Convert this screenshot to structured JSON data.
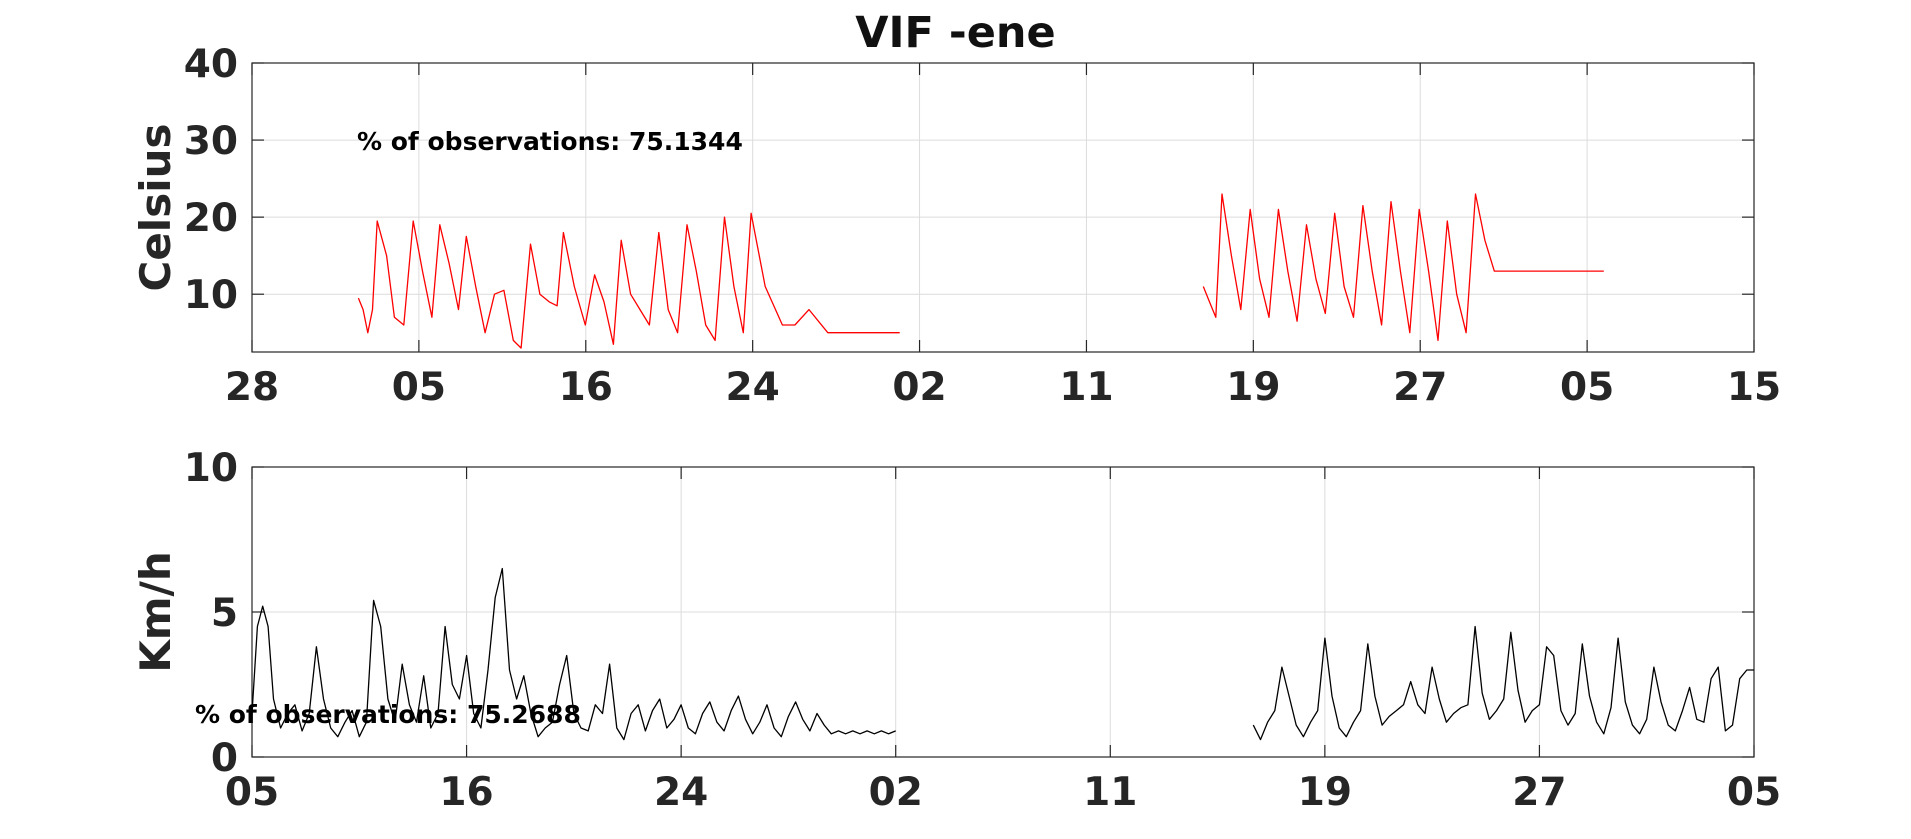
{
  "title": "VIF -ene",
  "chart_data": [
    {
      "type": "line",
      "ylabel": "Celsius",
      "ylim": [
        2.5,
        40
      ],
      "yticks": [
        10,
        20,
        30,
        40
      ],
      "xlim": [
        0,
        48
      ],
      "xticks": [
        0,
        5.333,
        10.667,
        16,
        21.333,
        26.667,
        32,
        37.333,
        42.667,
        48
      ],
      "xtick_labels": [
        "28",
        "05",
        "16",
        "24",
        "02",
        "11",
        "19",
        "27",
        "05",
        "15"
      ],
      "grid": true,
      "color": "#ff0000",
      "annotation": "% of observations: 75.1344",
      "series": [
        {
          "x": [
            3.4,
            3.55,
            3.7,
            3.85,
            4.0,
            4.3,
            4.55,
            4.85,
            5.15,
            5.45,
            5.75,
            6.0,
            6.3,
            6.6,
            6.85,
            7.15,
            7.45,
            7.75,
            8.05,
            8.35,
            8.6,
            8.9,
            9.2,
            9.5,
            9.75,
            9.95,
            10.3,
            10.65,
            10.95,
            11.25,
            11.55,
            11.8,
            12.1,
            12.4,
            12.7,
            13.0,
            13.3,
            13.6,
            13.9,
            14.2,
            14.5,
            14.8,
            15.1,
            15.4,
            15.7,
            15.95,
            16.4,
            16.95,
            17.35,
            17.8,
            18.4,
            18.85,
            19.35,
            20.0,
            20.4,
            20.7
          ],
          "y": [
            9.5,
            8,
            5,
            8,
            19.5,
            15,
            7,
            6,
            19.5,
            13,
            7,
            19,
            14,
            8,
            17.5,
            11,
            5,
            10,
            10.5,
            4,
            3,
            16.5,
            10,
            9,
            8.5,
            18,
            11,
            6,
            12.5,
            9,
            3.5,
            17,
            10,
            8,
            6,
            18,
            8,
            5,
            19,
            13,
            6,
            4,
            20,
            11,
            5,
            20.5,
            11,
            6,
            6,
            8,
            5,
            5,
            5,
            5,
            5,
            5
          ]
        },
        {
          "x": [
            30.4,
            30.6,
            30.8,
            31.0,
            31.3,
            31.6,
            31.9,
            32.2,
            32.5,
            32.8,
            33.1,
            33.4,
            33.7,
            34.0,
            34.3,
            34.6,
            34.9,
            35.2,
            35.5,
            35.8,
            36.1,
            36.4,
            36.7,
            37.0,
            37.3,
            37.6,
            37.9,
            38.2,
            38.5,
            38.8,
            39.1,
            39.4,
            39.7,
            40.0,
            40.3,
            40.6,
            40.9,
            41.2,
            41.5,
            41.8,
            42.1,
            42.4,
            42.7,
            43.0,
            43.2
          ],
          "y": [
            11,
            9,
            7,
            23,
            15,
            8,
            21,
            12,
            7,
            21,
            13,
            6.5,
            19,
            12,
            7.5,
            20.5,
            11,
            7,
            21.5,
            13,
            6,
            22,
            13,
            5,
            21,
            13,
            4,
            19.5,
            10,
            5,
            23,
            17,
            13,
            13,
            13,
            13,
            13,
            13,
            13,
            13,
            13,
            13,
            13,
            13,
            13
          ]
        }
      ]
    },
    {
      "type": "line",
      "ylabel": "Km/h",
      "ylim": [
        0,
        10
      ],
      "yticks": [
        0,
        5,
        10
      ],
      "xlim": [
        0,
        42
      ],
      "xticks": [
        0,
        6,
        12,
        18,
        24,
        30,
        36,
        42
      ],
      "xtick_labels": [
        "05",
        "16",
        "24",
        "02",
        "11",
        "19",
        "27",
        "05"
      ],
      "grid": true,
      "color": "#000000",
      "annotation": "% of observations: 75.2688",
      "series": [
        {
          "x": [
            0.0,
            0.15,
            0.3,
            0.45,
            0.6,
            0.8,
            1.0,
            1.2,
            1.4,
            1.6,
            1.8,
            2.0,
            2.2,
            2.4,
            2.6,
            2.8,
            3.0,
            3.2,
            3.4,
            3.6,
            3.8,
            4.0,
            4.2,
            4.4,
            4.6,
            4.8,
            5.0,
            5.2,
            5.4,
            5.6,
            5.8,
            6.0,
            6.2,
            6.4,
            6.6,
            6.8,
            7.0,
            7.2,
            7.4,
            7.6,
            7.8,
            8.0,
            8.2,
            8.4,
            8.6,
            8.8,
            9.0,
            9.2,
            9.4,
            9.6,
            9.8,
            10.0,
            10.2,
            10.4,
            10.6,
            10.8,
            11.0,
            11.2,
            11.4,
            11.6,
            11.8,
            12.0,
            12.2,
            12.4,
            12.6,
            12.8,
            13.0,
            13.2,
            13.4,
            13.6,
            13.8,
            14.0,
            14.2,
            14.4,
            14.6,
            14.8,
            15.0,
            15.2,
            15.4,
            15.6,
            15.8,
            16.0,
            16.2,
            16.4,
            16.6,
            16.8,
            17.0,
            17.2,
            17.4,
            17.6,
            17.8,
            18.0
          ],
          "y": [
            1.5,
            4.5,
            5.2,
            4.5,
            2,
            1,
            1.5,
            1.8,
            0.9,
            1.5,
            3.8,
            2,
            1,
            0.7,
            1.2,
            1.6,
            0.7,
            1.2,
            5.4,
            4.5,
            2,
            1.2,
            3.2,
            1.8,
            1.2,
            2.8,
            1,
            1.5,
            4.5,
            2.5,
            2,
            3.5,
            1.5,
            1,
            3,
            5.5,
            6.5,
            3,
            2,
            2.8,
            1.5,
            0.7,
            1,
            1.2,
            2.5,
            3.5,
            1.5,
            1,
            0.9,
            1.8,
            1.5,
            3.2,
            1,
            0.6,
            1.5,
            1.8,
            0.9,
            1.6,
            2,
            1,
            1.3,
            1.8,
            1,
            0.8,
            1.5,
            1.9,
            1.2,
            0.9,
            1.6,
            2.1,
            1.3,
            0.8,
            1.2,
            1.8,
            1.0,
            0.7,
            1.4,
            1.9,
            1.3,
            0.9,
            1.5,
            1.1,
            0.8,
            0.9,
            0.8,
            0.9,
            0.8,
            0.9,
            0.8,
            0.9,
            0.8,
            0.9
          ]
        },
        {
          "x": [
            28.0,
            28.2,
            28.4,
            28.6,
            28.8,
            29.0,
            29.2,
            29.4,
            29.6,
            29.8,
            30.0,
            30.2,
            30.4,
            30.6,
            30.8,
            31.0,
            31.2,
            31.4,
            31.6,
            31.8,
            32.0,
            32.2,
            32.4,
            32.6,
            32.8,
            33.0,
            33.2,
            33.4,
            33.6,
            33.8,
            34.0,
            34.2,
            34.4,
            34.6,
            34.8,
            35.0,
            35.2,
            35.4,
            35.6,
            35.8,
            36.0,
            36.2,
            36.4,
            36.6,
            36.8,
            37.0,
            37.2,
            37.4,
            37.6,
            37.8,
            38.0,
            38.2,
            38.4,
            38.6,
            38.8,
            39.0,
            39.2,
            39.4,
            39.6,
            39.8,
            40.0,
            40.2,
            40.4,
            40.6,
            40.8,
            41.0,
            41.2,
            41.4,
            41.6,
            41.8,
            42.0
          ],
          "y": [
            1.1,
            0.6,
            1.2,
            1.6,
            3.1,
            2.1,
            1.1,
            0.7,
            1.2,
            1.6,
            4.1,
            2.1,
            1.0,
            0.7,
            1.2,
            1.6,
            3.9,
            2.1,
            1.1,
            1.4,
            1.6,
            1.8,
            2.6,
            1.8,
            1.5,
            3.1,
            2.0,
            1.2,
            1.5,
            1.7,
            1.8,
            4.5,
            2.2,
            1.3,
            1.6,
            2.0,
            4.3,
            2.3,
            1.2,
            1.6,
            1.8,
            3.8,
            3.5,
            1.6,
            1.1,
            1.5,
            3.9,
            2.1,
            1.2,
            0.8,
            1.7,
            4.1,
            1.9,
            1.1,
            0.8,
            1.3,
            3.1,
            1.9,
            1.1,
            0.9,
            1.6,
            2.4,
            1.3,
            1.2,
            2.7,
            3.1,
            0.9,
            1.1,
            2.7,
            3.0,
            3.0
          ]
        }
      ]
    }
  ]
}
